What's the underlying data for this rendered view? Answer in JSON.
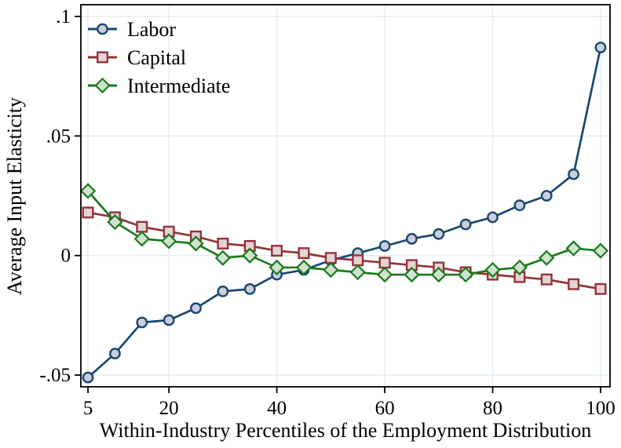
{
  "chart_data": {
    "type": "line",
    "xlabel": "Within-Industry Percentiles of the Employment Distribution",
    "ylabel": "Average Input Elasticity",
    "x": [
      5,
      10,
      15,
      20,
      25,
      30,
      35,
      40,
      45,
      50,
      55,
      60,
      65,
      70,
      75,
      80,
      85,
      90,
      95,
      100
    ],
    "series": [
      {
        "name": "Labor",
        "marker": "circle",
        "color": "#1a476f",
        "marker_fill": "#c9d0da",
        "values": [
          -0.051,
          -0.041,
          -0.028,
          -0.027,
          -0.022,
          -0.015,
          -0.014,
          -0.008,
          -0.006,
          -0.002,
          0.001,
          0.004,
          0.007,
          0.009,
          0.013,
          0.016,
          0.021,
          0.025,
          0.034,
          0.087
        ]
      },
      {
        "name": "Capital",
        "marker": "square",
        "color": "#90353b",
        "marker_fill": "#e6d3d4",
        "values": [
          0.018,
          0.016,
          0.012,
          0.01,
          0.008,
          0.005,
          0.004,
          0.002,
          0.001,
          -0.001,
          -0.002,
          -0.003,
          -0.004,
          -0.005,
          -0.007,
          -0.008,
          -0.009,
          -0.01,
          -0.012,
          -0.014
        ]
      },
      {
        "name": "Intermediate",
        "marker": "diamond",
        "color": "#1a7a1a",
        "marker_fill": "#cfe3cf",
        "values": [
          0.027,
          0.014,
          0.007,
          0.006,
          0.005,
          -0.001,
          0.0,
          -0.005,
          -0.005,
          -0.006,
          -0.007,
          -0.008,
          -0.008,
          -0.008,
          -0.008,
          -0.006,
          -0.005,
          -0.001,
          0.003,
          0.002
        ]
      }
    ],
    "x_ticks": [
      {
        "v": 5,
        "label": "5"
      },
      {
        "v": 20,
        "label": "20"
      },
      {
        "v": 40,
        "label": "40"
      },
      {
        "v": 60,
        "label": "60"
      },
      {
        "v": 80,
        "label": "80"
      },
      {
        "v": 100,
        "label": "100"
      }
    ],
    "y_ticks": [
      {
        "v": 0.1,
        "label": ".1"
      },
      {
        "v": 0.05,
        "label": ".05"
      },
      {
        "v": 0,
        "label": "0"
      },
      {
        "v": -0.05,
        "label": "-.05"
      }
    ],
    "xlim": [
      3.68,
      101.75
    ],
    "ylim": [
      -0.0549,
      0.1049
    ],
    "grid": true,
    "legend_position": "top-left",
    "colors": {
      "background": "#ffffff",
      "grid": "#e0ebf2",
      "axis": "#000000"
    }
  }
}
